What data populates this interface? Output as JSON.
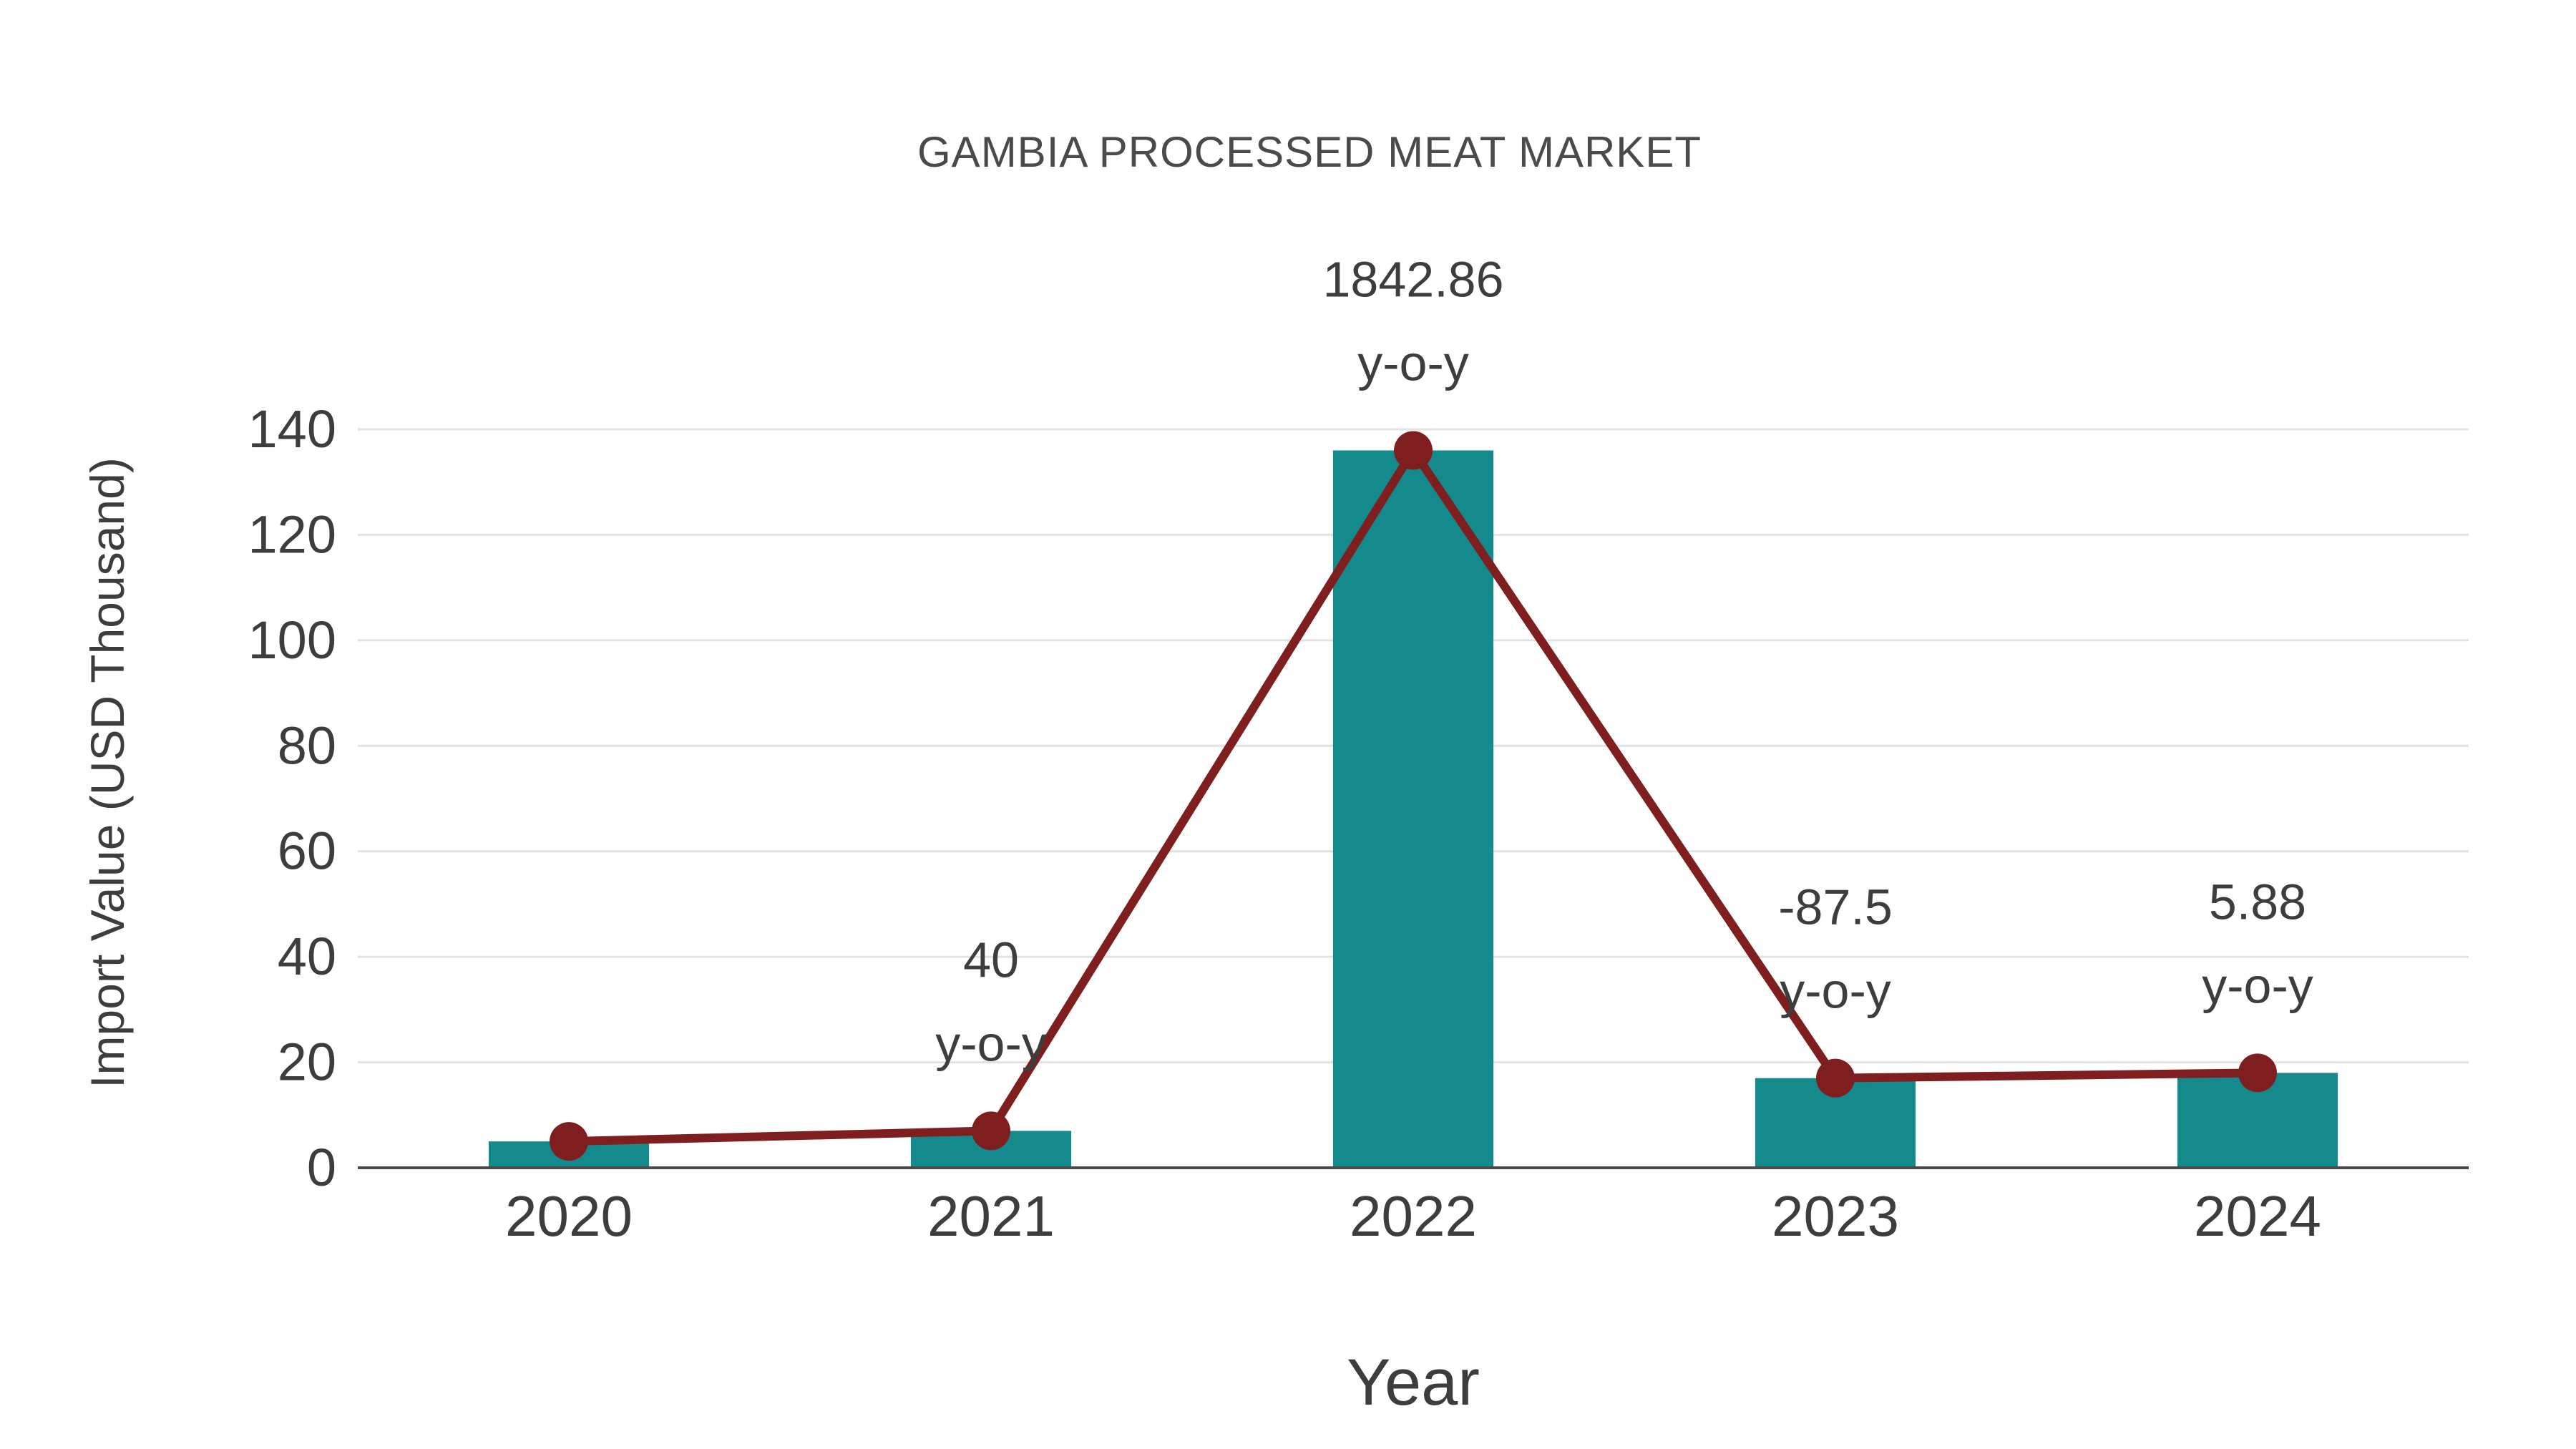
{
  "chart_data": {
    "type": "bar",
    "title": "GAMBIA PROCESSED MEAT MARKET",
    "xlabel": "Year",
    "ylabel": "Import Value (USD Thousand)",
    "categories": [
      "2020",
      "2021",
      "2022",
      "2023",
      "2024"
    ],
    "series": [
      {
        "name": "Import Value (USD Thousand)",
        "type": "bar",
        "values": [
          5,
          7,
          136,
          17,
          18
        ]
      },
      {
        "name": "y-o-y trend line",
        "type": "line",
        "values": [
          5,
          7,
          136,
          17,
          18
        ]
      }
    ],
    "annotations": [
      {
        "category": "2021",
        "value_label": "40",
        "suffix_label": "y-o-y"
      },
      {
        "category": "2022",
        "value_label": "1842.86",
        "suffix_label": "y-o-y"
      },
      {
        "category": "2023",
        "value_label": "-87.5",
        "suffix_label": "y-o-y"
      },
      {
        "category": "2024",
        "value_label": "5.88",
        "suffix_label": "y-o-y"
      }
    ],
    "ylim": [
      0,
      140
    ],
    "yticks": [
      0,
      20,
      40,
      60,
      80,
      100,
      120,
      140
    ],
    "grid": true,
    "legend": "none",
    "colors": {
      "bar": "#148a8d",
      "line": "#7e1e1e",
      "marker": "#7e1e1e",
      "text": "#3d3d3d",
      "title": "#4a4a4a",
      "grid": "#e2e2e2",
      "axis": "#4a4a4a",
      "background": "#ffffff"
    }
  }
}
